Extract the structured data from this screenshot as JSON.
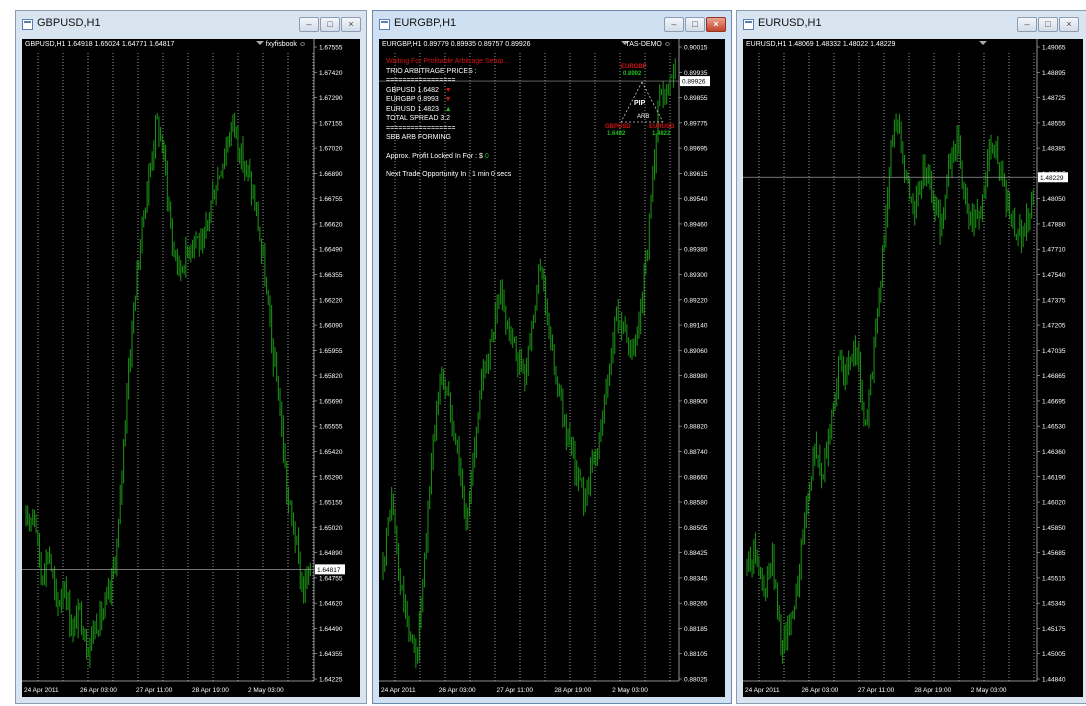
{
  "colors": {
    "candle": "#1a8a14",
    "grid": "#ffffff",
    "text": "#ffffff",
    "background": "#000000",
    "red": "#d21414",
    "green": "#1fbb1f"
  },
  "windows": [
    {
      "title": "GBPUSD,H1",
      "info": "GBPUSD,H1  1.64918 1.65024 1.64771 1.64817",
      "corner": "fxyfisbook",
      "price_tag": "1.64817",
      "price_labels": [
        "1.67555",
        "1.67420",
        "1.67290",
        "1.67155",
        "1.67020",
        "1.66890",
        "1.66755",
        "1.66620",
        "1.66490",
        "1.66355",
        "1.66220",
        "1.66090",
        "1.65955",
        "1.65820",
        "1.65690",
        "1.65555",
        "1.65420",
        "1.65290",
        "1.65155",
        "1.65020",
        "1.64890",
        "1.64755",
        "1.64620",
        "1.64490",
        "1.64355",
        "1.64225"
      ],
      "time_labels": [
        "24 Apr 2011",
        "26 Apr 03:00",
        "27 Apr 11:00",
        "28 Apr 19:00",
        "2 May 03:00"
      ],
      "chart_data": {
        "type": "candlestick",
        "instrument": "GBPUSD",
        "timeframe": "H1",
        "ylim": [
          1.64225,
          1.67555
        ],
        "last_close": 1.64817,
        "path": [
          1.6505,
          1.6515,
          1.6478,
          1.6492,
          1.646,
          1.6475,
          1.6448,
          1.646,
          1.644,
          1.6452,
          1.6458,
          1.647,
          1.65,
          1.657,
          1.662,
          1.666,
          1.669,
          1.672,
          1.67,
          1.6655,
          1.664,
          1.665,
          1.666,
          1.665,
          1.6675,
          1.669,
          1.6705,
          1.672,
          1.67,
          1.669,
          1.667,
          1.664,
          1.66,
          1.657,
          1.652,
          1.65,
          1.647,
          1.648
        ]
      }
    },
    {
      "title": "EURGBP,H1",
      "info": "EURGBP,H1  0.89779 0.89935 0.89757 0.89926",
      "corner": "TAS-DEMO",
      "price_tag": "0.89926",
      "price_labels": [
        "0.90015",
        "0.89935",
        "0.89855",
        "0.89775",
        "0.89695",
        "0.89615",
        "0.89540",
        "0.89460",
        "0.89380",
        "0.89300",
        "0.89220",
        "0.89140",
        "0.89060",
        "0.88980",
        "0.88900",
        "0.88820",
        "0.88740",
        "0.88660",
        "0.88580",
        "0.88505",
        "0.88425",
        "0.88345",
        "0.88265",
        "0.88185",
        "0.88105",
        "0.88025"
      ],
      "time_labels": [
        "24 Apr 2011",
        "26 Apr 03:00",
        "27 Apr 11:00",
        "28 Apr 19:00",
        "2 May 03:00"
      ],
      "panel": {
        "status": "Waiting For Profitable Arbitrage Setup...",
        "header": "TRIO ARBITRAGE PRICES :",
        "separator": "=================",
        "rows": [
          {
            "pair": "GBPUSD 1.6482",
            "dir": "▼",
            "dir_color": "#d21414"
          },
          {
            "pair": "EURGBP 0.8993",
            "dir": "▼",
            "dir_color": "#d21414"
          },
          {
            "pair": "EURUSD 1.4823",
            "dir": "▲",
            "dir_color": "#1fbb1f"
          }
        ],
        "spread": "TOTAL SPREAD 3.2",
        "arb": "SBB ARB FORMING",
        "profit_label": "Approx. Profit Locked In For : $",
        "profit_value": "0",
        "next_trade": "Next Trade Opportunity In : 1 min 0 secs"
      },
      "triangle": {
        "top_label": "EURGBP",
        "top_value": "0.8992",
        "center": "PIP",
        "center_sub": "ARB",
        "left_label": "GBPUSD",
        "left_value": "1.6482",
        "right_label": "EURUSD",
        "right_value": "1.4822"
      },
      "chart_data": {
        "type": "candlestick",
        "instrument": "EURGBP",
        "timeframe": "H1",
        "ylim": [
          0.88025,
          0.90015
        ],
        "last_close": 0.89926,
        "path": [
          0.884,
          0.886,
          0.8835,
          0.882,
          0.881,
          0.884,
          0.888,
          0.89,
          0.889,
          0.8875,
          0.885,
          0.888,
          0.89,
          0.891,
          0.8925,
          0.8915,
          0.8905,
          0.89,
          0.892,
          0.8935,
          0.891,
          0.8895,
          0.888,
          0.887,
          0.886,
          0.887,
          0.888,
          0.89,
          0.892,
          0.891,
          0.8905,
          0.892,
          0.895,
          0.8985,
          0.899,
          0.8993
        ]
      }
    },
    {
      "title": "EURUSD,H1",
      "info": "EURUSD,H1  1.48069 1.48332 1.48022 1.48229",
      "price_tag": "1.48229",
      "price_labels": [
        "1.49065",
        "1.48895",
        "1.48725",
        "1.48555",
        "1.48385",
        "1.48215",
        "1.48050",
        "1.47880",
        "1.47710",
        "1.47540",
        "1.47375",
        "1.47205",
        "1.47035",
        "1.46865",
        "1.46695",
        "1.46530",
        "1.46360",
        "1.46190",
        "1.46020",
        "1.45850",
        "1.45685",
        "1.45515",
        "1.45345",
        "1.45175",
        "1.45005",
        "1.44840"
      ],
      "time_labels": [
        "24 Apr 2011",
        "26 Apr 03:00",
        "27 Apr 11:00",
        "28 Apr 19:00",
        "2 May 03:00"
      ],
      "chart_data": {
        "type": "candlestick",
        "instrument": "EURUSD",
        "timeframe": "H1",
        "ylim": [
          1.4484,
          1.49065
        ],
        "last_close": 1.48229,
        "path": [
          1.456,
          1.4575,
          1.454,
          1.4565,
          1.451,
          1.452,
          1.455,
          1.46,
          1.464,
          1.462,
          1.466,
          1.47,
          1.469,
          1.471,
          1.465,
          1.47,
          1.476,
          1.484,
          1.486,
          1.482,
          1.48,
          1.483,
          1.481,
          1.479,
          1.483,
          1.485,
          1.48,
          1.479,
          1.481,
          1.485,
          1.483,
          1.48,
          1.478,
          1.479,
          1.481
        ]
      }
    }
  ]
}
